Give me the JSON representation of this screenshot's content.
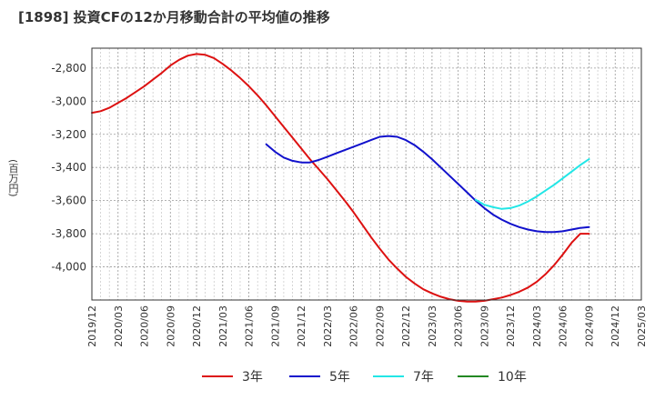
{
  "title": "[1898]  投資CFの12か月移動合計の平均値の推移",
  "chart_data": {
    "type": "line",
    "title": "[1898]  投資CFの12か月移動合計の平均値の推移",
    "ylabel": "(百万円)",
    "xlabel": "",
    "x_ticks": [
      "2019/12",
      "2020/03",
      "2020/06",
      "2020/09",
      "2020/12",
      "2021/03",
      "2021/06",
      "2021/09",
      "2021/12",
      "2022/03",
      "2022/06",
      "2022/09",
      "2022/12",
      "2023/03",
      "2023/06",
      "2023/09",
      "2023/12",
      "2024/03",
      "2024/06",
      "2024/09",
      "2024/12",
      "2025/03"
    ],
    "y_ticks": [
      -2800,
      -3000,
      -3200,
      -3400,
      -3600,
      -3800,
      -4000
    ],
    "y_tick_labels": [
      "-2,800",
      "-3,000",
      "-3,200",
      "-3,400",
      "-3,600",
      "-3,800",
      "-4,000"
    ],
    "ylim": [
      -4200,
      -2680
    ],
    "grid": true,
    "legend_position": "bottom",
    "series": [
      {
        "name": "3年",
        "color": "#dd1111",
        "x": [
          "2019/12",
          "2020/01",
          "2020/02",
          "2020/03",
          "2020/04",
          "2020/05",
          "2020/06",
          "2020/07",
          "2020/08",
          "2020/09",
          "2020/10",
          "2020/11",
          "2020/12",
          "2021/01",
          "2021/02",
          "2021/03",
          "2021/04",
          "2021/05",
          "2021/06",
          "2021/07",
          "2021/08",
          "2021/09",
          "2021/10",
          "2021/11",
          "2021/12",
          "2022/01",
          "2022/02",
          "2022/03",
          "2022/04",
          "2022/05",
          "2022/06",
          "2022/07",
          "2022/08",
          "2022/09",
          "2022/10",
          "2022/11",
          "2022/12",
          "2023/01",
          "2023/02",
          "2023/03",
          "2023/04",
          "2023/05",
          "2023/06",
          "2023/07",
          "2023/08",
          "2023/09",
          "2023/10",
          "2023/11",
          "2023/12",
          "2024/01",
          "2024/02",
          "2024/03",
          "2024/04",
          "2024/05",
          "2024/06",
          "2024/07",
          "2024/08",
          "2024/09"
        ],
        "values": [
          -3070,
          -3060,
          -3040,
          -3010,
          -2980,
          -2945,
          -2910,
          -2870,
          -2830,
          -2785,
          -2750,
          -2725,
          -2715,
          -2720,
          -2740,
          -2775,
          -2815,
          -2860,
          -2910,
          -2965,
          -3025,
          -3090,
          -3155,
          -3220,
          -3285,
          -3350,
          -3410,
          -3470,
          -3535,
          -3600,
          -3670,
          -3745,
          -3820,
          -3890,
          -3955,
          -4010,
          -4060,
          -4100,
          -4135,
          -4160,
          -4180,
          -4195,
          -4205,
          -4210,
          -4210,
          -4205,
          -4195,
          -4185,
          -4170,
          -4150,
          -4125,
          -4090,
          -4045,
          -3990,
          -3925,
          -3855,
          -3800,
          -3800
        ]
      },
      {
        "name": "5年",
        "color": "#1111cc",
        "x": [
          "2021/08",
          "2021/09",
          "2021/10",
          "2021/11",
          "2021/12",
          "2022/01",
          "2022/02",
          "2022/03",
          "2022/04",
          "2022/05",
          "2022/06",
          "2022/07",
          "2022/08",
          "2022/09",
          "2022/10",
          "2022/11",
          "2022/12",
          "2023/01",
          "2023/02",
          "2023/03",
          "2023/04",
          "2023/05",
          "2023/06",
          "2023/07",
          "2023/08",
          "2023/09",
          "2023/10",
          "2023/11",
          "2023/12",
          "2024/01",
          "2024/02",
          "2024/03",
          "2024/04",
          "2024/05",
          "2024/06",
          "2024/07",
          "2024/08",
          "2024/09"
        ],
        "values": [
          -3260,
          -3305,
          -3340,
          -3360,
          -3370,
          -3370,
          -3355,
          -3335,
          -3315,
          -3295,
          -3275,
          -3255,
          -3235,
          -3215,
          -3210,
          -3215,
          -3235,
          -3265,
          -3305,
          -3350,
          -3400,
          -3450,
          -3500,
          -3550,
          -3600,
          -3645,
          -3685,
          -3715,
          -3740,
          -3760,
          -3775,
          -3785,
          -3790,
          -3790,
          -3785,
          -3775,
          -3765,
          -3760
        ]
      },
      {
        "name": "7年",
        "color": "#22e6e6",
        "x": [
          "2023/08",
          "2023/09",
          "2023/10",
          "2023/11",
          "2023/12",
          "2024/01",
          "2024/02",
          "2024/03",
          "2024/04",
          "2024/05",
          "2024/06",
          "2024/07",
          "2024/08",
          "2024/09"
        ],
        "values": [
          -3595,
          -3625,
          -3640,
          -3650,
          -3645,
          -3630,
          -3605,
          -3575,
          -3540,
          -3505,
          -3465,
          -3425,
          -3385,
          -3350
        ]
      },
      {
        "name": "10年",
        "color": "#228822",
        "x": [],
        "values": []
      }
    ]
  }
}
